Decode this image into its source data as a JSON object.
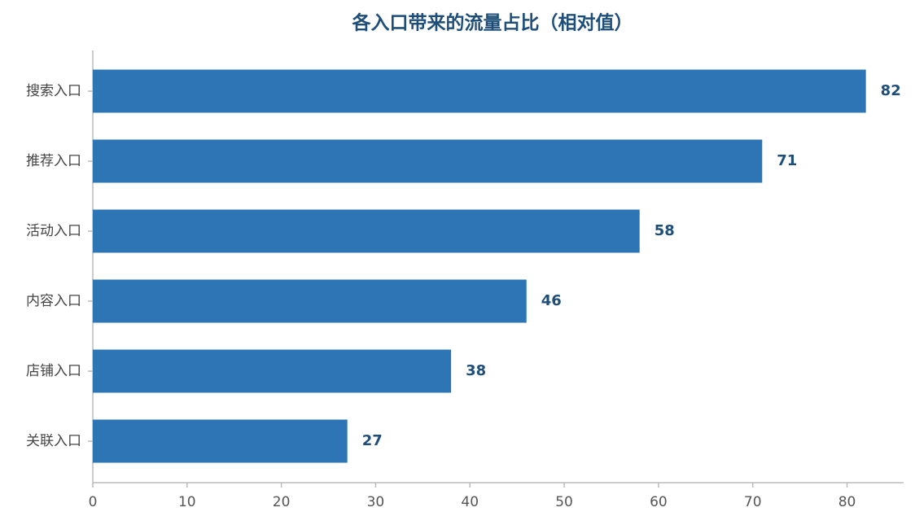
{
  "chart_data": {
    "type": "bar",
    "orientation": "horizontal",
    "title": "各入口带来的流量占比（相对值）",
    "categories": [
      "搜索入口",
      "推荐入口",
      "活动入口",
      "内容入口",
      "店铺入口",
      "关联入口"
    ],
    "values": [
      82,
      71,
      58,
      46,
      38,
      27
    ],
    "color": "#2e75b6",
    "label_color": "#1f4e79",
    "xlim": [
      0,
      86
    ],
    "xticks": [
      0,
      10,
      20,
      30,
      40,
      50,
      60,
      70,
      80
    ],
    "grid": false
  }
}
